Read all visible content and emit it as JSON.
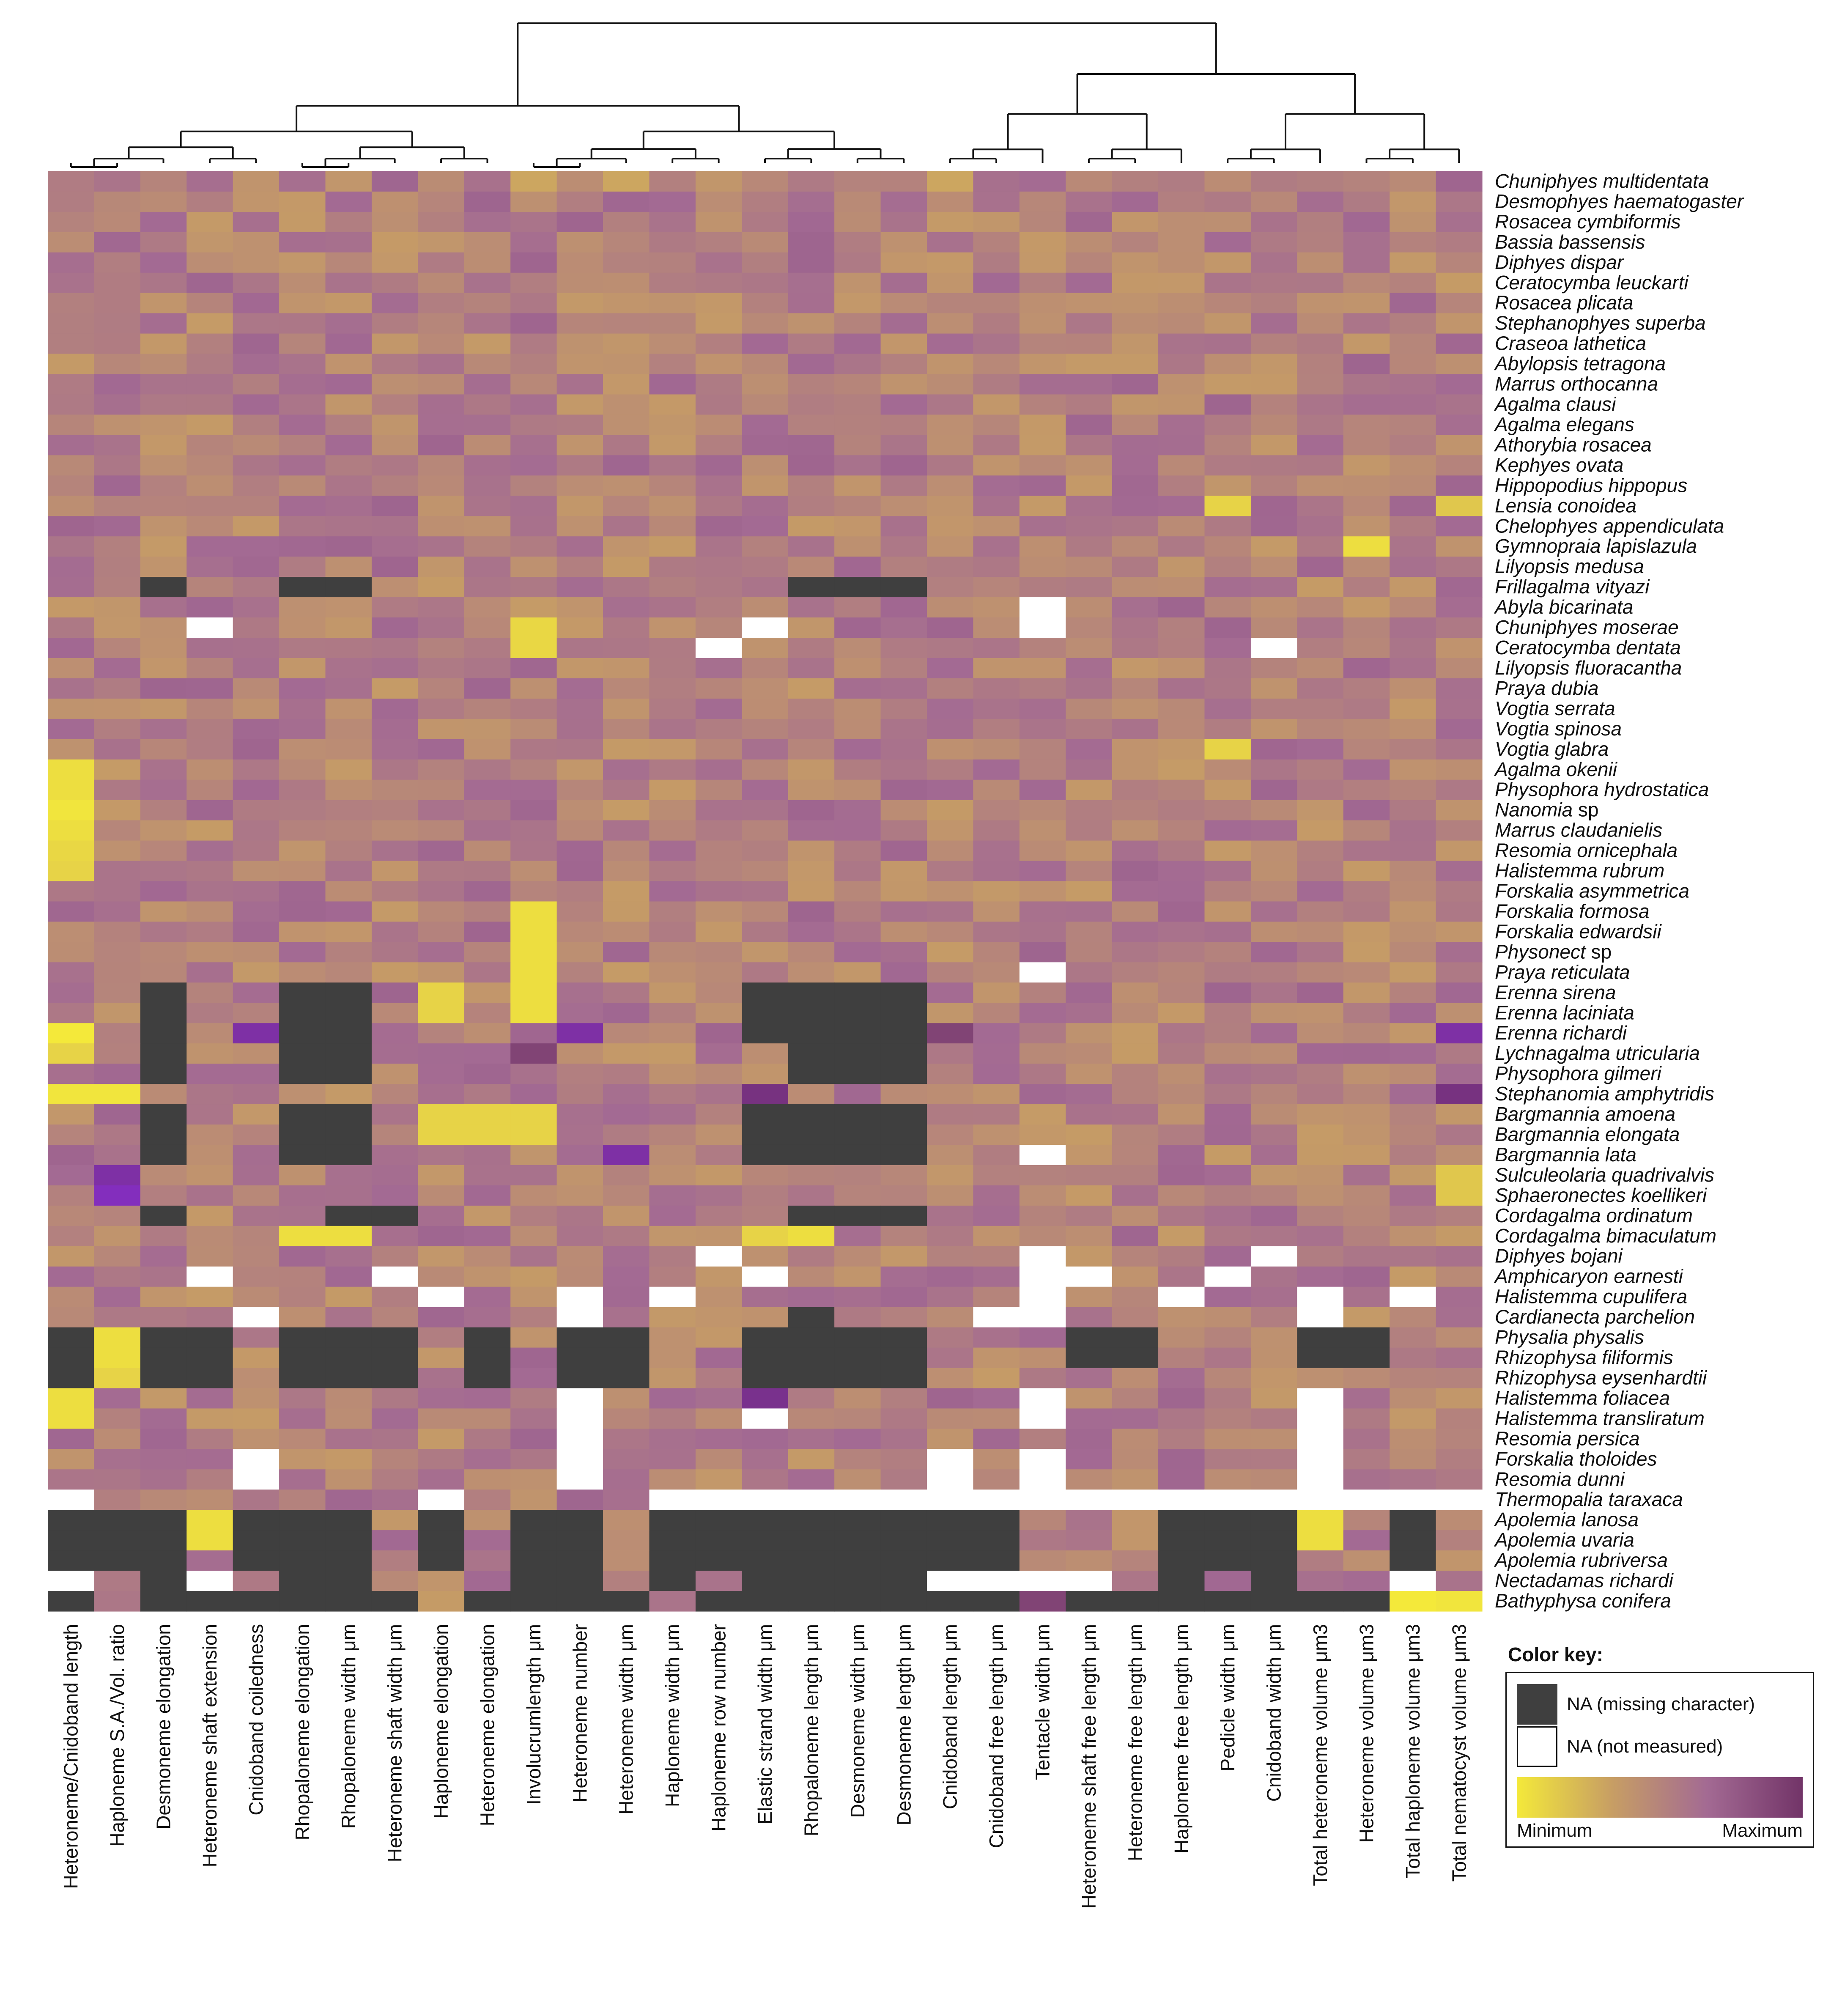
{
  "chart_data": {
    "type": "heatmap",
    "title": "",
    "columns": [
      "Heteroneme/Cnidoband length",
      "Haploneme S.A./Vol. ratio",
      "Desmoneme elongation",
      "Heteroneme shaft extension",
      "Cnidoband coiledness",
      "Rhopaloneme elongation",
      "Rhopaloneme width μm",
      "Heteroneme shaft width μm",
      "Haploneme elongation",
      "Heteroneme elongation",
      "Involucrumlength μm",
      "Heteroneme number",
      "Heteroneme width μm",
      "Haploneme width μm",
      "Haploneme row number",
      "Elastic strand width μm",
      "Rhopaloneme length μm",
      "Desmoneme width μm",
      "Desmoneme length μm",
      "Cnidoband length μm",
      "Cnidoband free length μm",
      "Tentacle width μm",
      "Heteroneme shaft free length μm",
      "Heteroneme free length μm",
      "Haploneme free length μm",
      "Pedicle width μm",
      "Cnidoband width μm",
      "Total heteroneme volume μm3",
      "Heteroneme volume μm3",
      "Total haploneme volume μm3",
      "Total nematocyst volume μm3"
    ],
    "rows": [
      "Chuniphyes multidentata",
      "Desmophyes haematogaster",
      "Rosacea cymbiformis",
      "Bassia bassensis",
      "Diphyes dispar",
      "Ceratocymba leuckarti",
      "Rosacea plicata",
      "Stephanophyes superba",
      "Craseoa lathetica",
      "Abylopsis tetragona",
      "Marrus orthocanna",
      "Agalma clausi",
      "Agalma elegans",
      "Athorybia rosacea",
      "Kephyes ovata",
      "Hippopodius hippopus",
      "Lensia conoidea",
      "Chelophyes appendiculata",
      "Gymnopraia lapislazula",
      "Lilyopsis medusa",
      "Frillagalma vityazi",
      "Abyla bicarinata",
      "Chuniphyes moserae",
      "Ceratocymba dentata",
      "Lilyopsis fluoracantha",
      "Praya dubia",
      "Vogtia serrata",
      "Vogtia spinosa",
      "Vogtia glabra",
      "Agalma okenii",
      "Physophora hydrostatica",
      "Nanomia sp",
      "Marrus claudanielis",
      "Resomia ornicephala",
      "Halistemma rubrum",
      "Forskalia asymmetrica",
      "Forskalia formosa",
      "Forskalia edwardsii",
      "Physonect sp",
      "Praya reticulata",
      "Erenna sirena",
      "Erenna laciniata",
      "Erenna richardi",
      "Lychnagalma utricularia",
      "Physophora gilmeri",
      "Stephanomia amphytridis",
      "Bargmannia amoena",
      "Bargmannia elongata",
      "Bargmannia lata",
      "Sulculeolaria quadrivalvis",
      "Sphaeronectes koellikeri",
      "Cordagalma ordinatum",
      "Cordagalma bimaculatum",
      "Diphyes bojani",
      "Amphicaryon earnesti",
      "Halistemma cupulifera",
      "Cardianecta parchelion",
      "Physalia physalis",
      "Rhizophysa filiformis",
      "Rhizophysa eysenhardtii",
      "Halistemma foliacea",
      "Halistemma transliratum",
      "Resomia persica",
      "Forskalia tholoides",
      "Resomia dunni",
      "Thermopalia taraxaca",
      "Apolemia lanosa",
      "Apolemia uvaria",
      "Apolemia rubriversa",
      "Nectadamas richardi",
      "Bathyphysa conifera"
    ],
    "value_scale": {
      "min_label": "Minimum",
      "max_label": "Maximum",
      "range": [
        0,
        1
      ]
    },
    "colors": {
      "scale": [
        "#F4E93A",
        "#C79E64",
        "#A36A93",
        "#723468"
      ],
      "high_accent": "#8A2BE2",
      "na_missing": "#3F3F3F",
      "na_not_measured": "#FFFFFF"
    },
    "na_missing": [
      [
        20,
        2
      ],
      [
        20,
        5
      ],
      [
        20,
        6
      ],
      [
        20,
        16
      ],
      [
        20,
        17
      ],
      [
        20,
        18
      ],
      [
        40,
        2
      ],
      [
        40,
        5
      ],
      [
        40,
        6
      ],
      [
        40,
        15
      ],
      [
        40,
        16
      ],
      [
        40,
        17
      ],
      [
        40,
        18
      ],
      [
        41,
        2
      ],
      [
        41,
        5
      ],
      [
        41,
        6
      ],
      [
        41,
        15
      ],
      [
        41,
        16
      ],
      [
        41,
        17
      ],
      [
        41,
        18
      ],
      [
        42,
        2
      ],
      [
        42,
        5
      ],
      [
        42,
        6
      ],
      [
        42,
        15
      ],
      [
        42,
        16
      ],
      [
        42,
        17
      ],
      [
        42,
        18
      ],
      [
        43,
        2
      ],
      [
        43,
        5
      ],
      [
        43,
        6
      ],
      [
        43,
        16
      ],
      [
        43,
        17
      ],
      [
        43,
        18
      ],
      [
        44,
        2
      ],
      [
        44,
        5
      ],
      [
        44,
        6
      ],
      [
        44,
        16
      ],
      [
        44,
        17
      ],
      [
        44,
        18
      ],
      [
        46,
        2
      ],
      [
        46,
        5
      ],
      [
        46,
        6
      ],
      [
        46,
        15
      ],
      [
        46,
        16
      ],
      [
        46,
        17
      ],
      [
        46,
        18
      ],
      [
        47,
        2
      ],
      [
        47,
        5
      ],
      [
        47,
        6
      ],
      [
        47,
        15
      ],
      [
        47,
        16
      ],
      [
        47,
        17
      ],
      [
        47,
        18
      ],
      [
        48,
        2
      ],
      [
        48,
        5
      ],
      [
        48,
        6
      ],
      [
        48,
        15
      ],
      [
        48,
        16
      ],
      [
        48,
        17
      ],
      [
        48,
        18
      ],
      [
        51,
        2
      ],
      [
        51,
        6
      ],
      [
        51,
        7
      ],
      [
        51,
        16
      ],
      [
        51,
        17
      ],
      [
        51,
        18
      ],
      [
        56,
        16
      ],
      [
        57,
        0
      ],
      [
        57,
        2
      ],
      [
        57,
        3
      ],
      [
        57,
        5
      ],
      [
        57,
        6
      ],
      [
        57,
        7
      ],
      [
        57,
        9
      ],
      [
        57,
        11
      ],
      [
        57,
        12
      ],
      [
        57,
        15
      ],
      [
        57,
        16
      ],
      [
        57,
        17
      ],
      [
        57,
        18
      ],
      [
        57,
        22
      ],
      [
        57,
        23
      ],
      [
        57,
        27
      ],
      [
        57,
        28
      ],
      [
        58,
        0
      ],
      [
        58,
        2
      ],
      [
        58,
        3
      ],
      [
        58,
        5
      ],
      [
        58,
        6
      ],
      [
        58,
        7
      ],
      [
        58,
        9
      ],
      [
        58,
        11
      ],
      [
        58,
        12
      ],
      [
        58,
        15
      ],
      [
        58,
        16
      ],
      [
        58,
        17
      ],
      [
        58,
        18
      ],
      [
        58,
        22
      ],
      [
        58,
        23
      ],
      [
        58,
        27
      ],
      [
        58,
        28
      ],
      [
        59,
        0
      ],
      [
        59,
        2
      ],
      [
        59,
        3
      ],
      [
        59,
        5
      ],
      [
        59,
        6
      ],
      [
        59,
        7
      ],
      [
        59,
        9
      ],
      [
        59,
        11
      ],
      [
        59,
        12
      ],
      [
        59,
        15
      ],
      [
        59,
        16
      ],
      [
        59,
        17
      ],
      [
        59,
        18
      ],
      [
        66,
        0
      ],
      [
        66,
        1
      ],
      [
        66,
        2
      ],
      [
        66,
        4
      ],
      [
        66,
        5
      ],
      [
        66,
        6
      ],
      [
        66,
        8
      ],
      [
        66,
        10
      ],
      [
        66,
        11
      ],
      [
        66,
        13
      ],
      [
        66,
        14
      ],
      [
        66,
        15
      ],
      [
        66,
        16
      ],
      [
        66,
        17
      ],
      [
        66,
        18
      ],
      [
        66,
        19
      ],
      [
        66,
        20
      ],
      [
        66,
        24
      ],
      [
        66,
        25
      ],
      [
        66,
        26
      ],
      [
        66,
        29
      ],
      [
        67,
        0
      ],
      [
        67,
        1
      ],
      [
        67,
        2
      ],
      [
        67,
        4
      ],
      [
        67,
        5
      ],
      [
        67,
        6
      ],
      [
        67,
        8
      ],
      [
        67,
        10
      ],
      [
        67,
        11
      ],
      [
        67,
        13
      ],
      [
        67,
        14
      ],
      [
        67,
        15
      ],
      [
        67,
        16
      ],
      [
        67,
        17
      ],
      [
        67,
        18
      ],
      [
        67,
        19
      ],
      [
        67,
        20
      ],
      [
        67,
        24
      ],
      [
        67,
        25
      ],
      [
        67,
        26
      ],
      [
        67,
        29
      ],
      [
        68,
        0
      ],
      [
        68,
        1
      ],
      [
        68,
        2
      ],
      [
        68,
        4
      ],
      [
        68,
        5
      ],
      [
        68,
        6
      ],
      [
        68,
        8
      ],
      [
        68,
        10
      ],
      [
        68,
        11
      ],
      [
        68,
        13
      ],
      [
        68,
        14
      ],
      [
        68,
        15
      ],
      [
        68,
        16
      ],
      [
        68,
        17
      ],
      [
        68,
        18
      ],
      [
        68,
        19
      ],
      [
        68,
        20
      ],
      [
        68,
        24
      ],
      [
        68,
        25
      ],
      [
        68,
        26
      ],
      [
        68,
        29
      ],
      [
        69,
        2
      ],
      [
        69,
        5
      ],
      [
        69,
        6
      ],
      [
        69,
        10
      ],
      [
        69,
        11
      ],
      [
        69,
        13
      ],
      [
        69,
        15
      ],
      [
        69,
        16
      ],
      [
        69,
        17
      ],
      [
        69,
        18
      ],
      [
        69,
        24
      ],
      [
        69,
        26
      ],
      [
        70,
        0
      ],
      [
        70,
        2
      ],
      [
        70,
        3
      ],
      [
        70,
        4
      ],
      [
        70,
        5
      ],
      [
        70,
        6
      ],
      [
        70,
        7
      ],
      [
        70,
        9
      ],
      [
        70,
        10
      ],
      [
        70,
        11
      ],
      [
        70,
        12
      ],
      [
        70,
        14
      ],
      [
        70,
        15
      ],
      [
        70,
        16
      ],
      [
        70,
        17
      ],
      [
        70,
        18
      ],
      [
        70,
        19
      ],
      [
        70,
        20
      ],
      [
        70,
        22
      ],
      [
        70,
        23
      ],
      [
        70,
        24
      ],
      [
        70,
        25
      ],
      [
        70,
        26
      ],
      [
        70,
        27
      ],
      [
        70,
        28
      ]
    ],
    "na_not_measured": [
      [
        21,
        21
      ],
      [
        22,
        3
      ],
      [
        22,
        15
      ],
      [
        22,
        21
      ],
      [
        23,
        14
      ],
      [
        23,
        26
      ],
      [
        39,
        21
      ],
      [
        48,
        21
      ],
      [
        53,
        14
      ],
      [
        53,
        21
      ],
      [
        53,
        26
      ],
      [
        54,
        3
      ],
      [
        54,
        7
      ],
      [
        54,
        15
      ],
      [
        54,
        21
      ],
      [
        54,
        22
      ],
      [
        54,
        25
      ],
      [
        55,
        8
      ],
      [
        55,
        11
      ],
      [
        55,
        13
      ],
      [
        55,
        21
      ],
      [
        55,
        24
      ],
      [
        55,
        27
      ],
      [
        55,
        29
      ],
      [
        56,
        4
      ],
      [
        56,
        11
      ],
      [
        56,
        20
      ],
      [
        56,
        21
      ],
      [
        56,
        27
      ],
      [
        60,
        11
      ],
      [
        60,
        21
      ],
      [
        60,
        27
      ],
      [
        61,
        11
      ],
      [
        61,
        15
      ],
      [
        61,
        21
      ],
      [
        61,
        27
      ],
      [
        62,
        11
      ],
      [
        62,
        27
      ],
      [
        63,
        4
      ],
      [
        63,
        11
      ],
      [
        63,
        19
      ],
      [
        63,
        21
      ],
      [
        63,
        27
      ],
      [
        64,
        4
      ],
      [
        64,
        11
      ],
      [
        64,
        19
      ],
      [
        64,
        21
      ],
      [
        64,
        27
      ],
      [
        65,
        0
      ],
      [
        65,
        8
      ],
      [
        65,
        13
      ],
      [
        65,
        14
      ],
      [
        65,
        15
      ],
      [
        65,
        16
      ],
      [
        65,
        17
      ],
      [
        65,
        18
      ],
      [
        65,
        19
      ],
      [
        65,
        20
      ],
      [
        65,
        21
      ],
      [
        65,
        22
      ],
      [
        65,
        23
      ],
      [
        65,
        24
      ],
      [
        65,
        25
      ],
      [
        65,
        26
      ],
      [
        65,
        27
      ],
      [
        65,
        28
      ],
      [
        65,
        29
      ],
      [
        65,
        30
      ],
      [
        69,
        0
      ],
      [
        69,
        3
      ],
      [
        69,
        19
      ],
      [
        69,
        20
      ],
      [
        69,
        21
      ],
      [
        69,
        22
      ],
      [
        69,
        29
      ]
    ],
    "notable_values": [
      [
        0,
        0,
        0.55
      ],
      [
        0,
        1,
        0.6
      ],
      [
        0,
        4,
        0.4
      ],
      [
        0,
        10,
        0.3
      ],
      [
        0,
        12,
        0.3
      ],
      [
        0,
        19,
        0.3
      ],
      [
        29,
        0,
        0.05
      ],
      [
        30,
        0,
        0.05
      ],
      [
        31,
        0,
        0.02
      ],
      [
        32,
        0,
        0.05
      ],
      [
        33,
        0,
        0.08
      ],
      [
        34,
        0,
        0.1
      ],
      [
        42,
        0,
        0.0
      ],
      [
        43,
        0,
        0.1
      ],
      [
        45,
        0,
        0.02
      ],
      [
        45,
        1,
        0.02
      ],
      [
        60,
        0,
        0.05
      ],
      [
        61,
        0,
        0.05
      ],
      [
        49,
        1,
        0.95
      ],
      [
        50,
        1,
        0.97
      ],
      [
        42,
        4,
        0.95
      ],
      [
        43,
        10,
        0.9
      ],
      [
        42,
        11,
        0.95
      ],
      [
        48,
        12,
        0.95
      ],
      [
        45,
        15,
        0.92
      ],
      [
        60,
        15,
        0.93
      ],
      [
        42,
        19,
        0.9
      ],
      [
        42,
        30,
        0.95
      ],
      [
        45,
        30,
        0.92
      ],
      [
        70,
        21,
        0.9
      ],
      [
        36,
        10,
        0.05
      ],
      [
        37,
        10,
        0.05
      ],
      [
        38,
        10,
        0.05
      ],
      [
        39,
        10,
        0.05
      ],
      [
        40,
        10,
        0.05
      ],
      [
        41,
        10,
        0.05
      ],
      [
        46,
        8,
        0.1
      ],
      [
        47,
        8,
        0.1
      ],
      [
        46,
        9,
        0.1
      ],
      [
        47,
        9,
        0.1
      ],
      [
        46,
        10,
        0.1
      ],
      [
        47,
        10,
        0.1
      ],
      [
        57,
        1,
        0.05
      ],
      [
        58,
        1,
        0.05
      ],
      [
        59,
        1,
        0.1
      ],
      [
        66,
        3,
        0.05
      ],
      [
        67,
        3,
        0.05
      ],
      [
        66,
        27,
        0.05
      ],
      [
        67,
        27,
        0.05
      ],
      [
        70,
        29,
        0.0
      ],
      [
        70,
        30,
        0.02
      ],
      [
        52,
        5,
        0.05
      ],
      [
        52,
        6,
        0.05
      ],
      [
        52,
        16,
        0.05
      ],
      [
        52,
        15,
        0.1
      ],
      [
        40,
        8,
        0.1
      ],
      [
        41,
        8,
        0.1
      ],
      [
        22,
        10,
        0.08
      ],
      [
        23,
        10,
        0.08
      ],
      [
        16,
        25,
        0.1
      ],
      [
        28,
        25,
        0.1
      ],
      [
        18,
        28,
        0.05
      ],
      [
        16,
        30,
        0.15
      ],
      [
        49,
        30,
        0.15
      ],
      [
        50,
        30,
        0.15
      ]
    ],
    "column_dendrogram_groups": [
      [
        0,
        1,
        2,
        3,
        4,
        5,
        6,
        7,
        8,
        9,
        10,
        11,
        12,
        13,
        14,
        15,
        16,
        17,
        18
      ],
      [
        19,
        20,
        21,
        22,
        23,
        24,
        25,
        26,
        27,
        28,
        29,
        30
      ]
    ]
  },
  "legend": {
    "title": "Color key:",
    "na_missing_label": "NA (missing character)",
    "na_not_measured_label": "NA (not measured)",
    "min_label": "Minimum",
    "max_label": "Maximum"
  }
}
